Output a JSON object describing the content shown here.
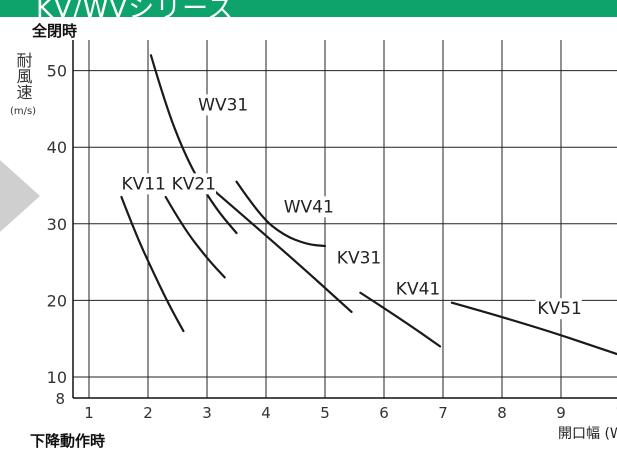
{
  "header": {
    "title": "KV/WVシリーズ",
    "color": "#0ea36a"
  },
  "section_top": "全閉時",
  "section_bottom": "下降動作時",
  "chart_data": {
    "type": "line",
    "title": "全閉時",
    "ylabel": "耐風速",
    "yunit": "(m/s)",
    "xlabel": "開口幅 (W",
    "xlim": [
      0,
      10
    ],
    "ylim": [
      8,
      52
    ],
    "xticks": [
      "1",
      "2",
      "3",
      "4",
      "5",
      "6",
      "7",
      "8",
      "9",
      "1"
    ],
    "yticks": [
      10,
      20,
      30,
      40,
      50
    ],
    "ytick_labels": [
      "10",
      "20",
      "30",
      "40",
      "50"
    ],
    "bottom_label": "8",
    "grid": true,
    "series": [
      {
        "name": "WV31",
        "x": [
          2.05,
          2.3,
          2.6,
          2.9,
          3.2,
          3.5
        ],
        "y": [
          52,
          45.5,
          39.5,
          35,
          31.5,
          28.8
        ]
      },
      {
        "name": "KV11",
        "x": [
          1.55,
          1.8,
          2.1,
          2.35,
          2.6
        ],
        "y": [
          33.5,
          28.5,
          23.5,
          19.5,
          16
        ]
      },
      {
        "name": "KV21",
        "x": [
          2.3,
          2.6,
          3.0,
          3.3
        ],
        "y": [
          33.5,
          29.5,
          25.5,
          23
        ]
      },
      {
        "name": "WV41",
        "x": [
          3.5,
          3.9,
          4.3,
          4.7,
          5.0
        ],
        "y": [
          35.5,
          31,
          28.5,
          27.3,
          27.1
        ]
      },
      {
        "name": "KV31",
        "x": [
          3.05,
          4.3,
          5.45
        ],
        "y": [
          34.8,
          26.5,
          18.5
        ]
      },
      {
        "name": "KV41",
        "x": [
          5.6,
          6.3,
          6.95
        ],
        "y": [
          21,
          17.5,
          14
        ]
      },
      {
        "name": "KV51",
        "x": [
          7.15,
          8.4,
          9.95
        ],
        "y": [
          19.7,
          17,
          13
        ]
      }
    ],
    "labels": [
      {
        "text": "WV31",
        "x": 2.85,
        "y": 44.8
      },
      {
        "text": "KV11",
        "x": 1.55,
        "y": 34.5
      },
      {
        "text": "KV21",
        "x": 2.4,
        "y": 34.5
      },
      {
        "text": "WV41",
        "x": 4.3,
        "y": 31.5
      },
      {
        "text": "KV31",
        "x": 5.2,
        "y": 24.8
      },
      {
        "text": "KV41",
        "x": 6.2,
        "y": 20.8
      },
      {
        "text": "KV51",
        "x": 8.6,
        "y": 18.2
      }
    ]
  }
}
